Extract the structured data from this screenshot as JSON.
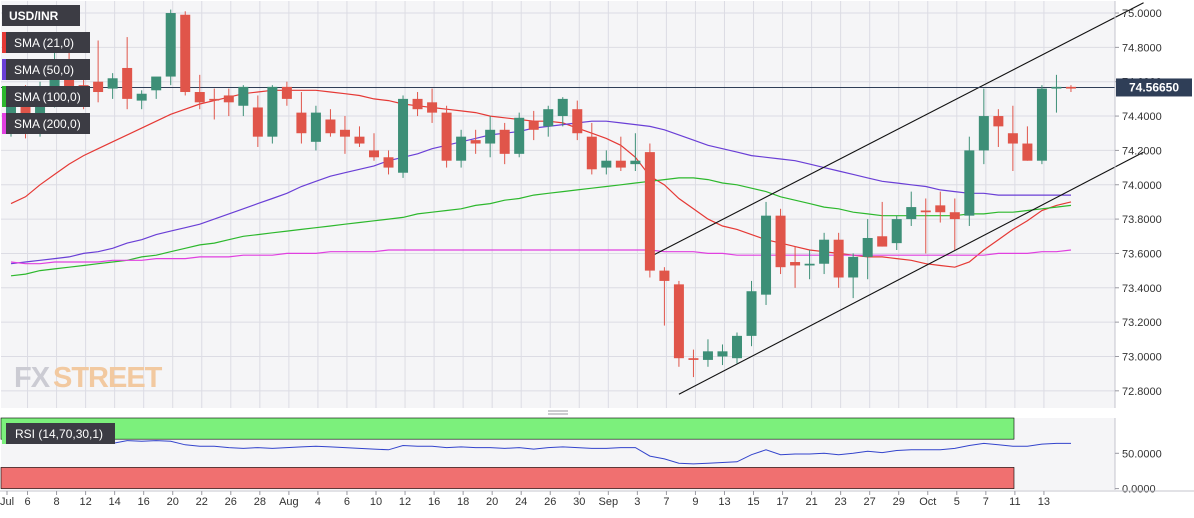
{
  "colors": {
    "background": "#f5f5f7",
    "grid": "#dcdce4",
    "bull": "#3d8f77",
    "bear": "#e0554a",
    "sma21": "#e53935",
    "sma50": "#6a3fd6",
    "sma100": "#2db82d",
    "sma200": "#e040e0",
    "channel": "#111111",
    "rsi_line": "#3344cc",
    "rsi_overbought_zone": "#7cf07c",
    "rsi_oversold_zone": "#f07070",
    "price_label_bg": "#2f3e57"
  },
  "header": {
    "symbol": "USD/INR"
  },
  "legend": [
    {
      "label": "SMA (21,0)",
      "color_key": "sma21"
    },
    {
      "label": "SMA (50,0)",
      "color_key": "sma50"
    },
    {
      "label": "SMA (100,0)",
      "color_key": "sma100"
    },
    {
      "label": "SMA (200,0)",
      "color_key": "sma200"
    }
  ],
  "watermark": {
    "part1": "FX",
    "part2": "STREET"
  },
  "price_label": "74.56650",
  "chart_data": {
    "type": "candlestick",
    "title": "USD/INR",
    "ylim": [
      72.7,
      75.07
    ],
    "y_ticks": [
      "75.0000",
      "74.8000",
      "74.6000",
      "74.4000",
      "74.2000",
      "74.0000",
      "73.8000",
      "73.6000",
      "73.4000",
      "73.2000",
      "73.0000",
      "72.8000"
    ],
    "x_ticks": [
      "Jul",
      "6",
      "8",
      "12",
      "14",
      "16",
      "20",
      "22",
      "26",
      "28",
      "Aug",
      "4",
      "6",
      "10",
      "12",
      "16",
      "18",
      "20",
      "24",
      "26",
      "30",
      "Sep",
      "3",
      "7",
      "9",
      "13",
      "15",
      "17",
      "21",
      "23",
      "27",
      "29",
      "Oct",
      "5",
      "7",
      "11",
      "13"
    ],
    "last_price": 74.5665,
    "candles": [
      {
        "o": 74.4,
        "h": 74.52,
        "l": 74.28,
        "c": 74.48
      },
      {
        "o": 74.5,
        "h": 74.58,
        "l": 74.27,
        "c": 74.32
      },
      {
        "o": 74.36,
        "h": 74.6,
        "l": 74.28,
        "c": 74.55
      },
      {
        "o": 74.56,
        "h": 74.78,
        "l": 74.45,
        "c": 74.62
      },
      {
        "o": 74.65,
        "h": 74.78,
        "l": 74.5,
        "c": 74.52
      },
      {
        "o": 74.58,
        "h": 74.64,
        "l": 74.44,
        "c": 74.56
      },
      {
        "o": 74.6,
        "h": 74.84,
        "l": 74.48,
        "c": 74.54
      },
      {
        "o": 74.56,
        "h": 74.65,
        "l": 74.5,
        "c": 74.62
      },
      {
        "o": 74.68,
        "h": 74.86,
        "l": 74.44,
        "c": 74.5
      },
      {
        "o": 74.49,
        "h": 74.55,
        "l": 74.44,
        "c": 74.53
      },
      {
        "o": 74.55,
        "h": 74.62,
        "l": 74.5,
        "c": 74.63
      },
      {
        "o": 74.63,
        "h": 75.02,
        "l": 74.58,
        "c": 75.0
      },
      {
        "o": 74.99,
        "h": 75.01,
        "l": 74.52,
        "c": 74.54
      },
      {
        "o": 74.54,
        "h": 74.64,
        "l": 74.44,
        "c": 74.48
      },
      {
        "o": 74.5,
        "h": 74.56,
        "l": 74.38,
        "c": 74.49
      },
      {
        "o": 74.52,
        "h": 74.56,
        "l": 74.4,
        "c": 74.48
      },
      {
        "o": 74.46,
        "h": 74.58,
        "l": 74.4,
        "c": 74.57
      },
      {
        "o": 74.45,
        "h": 74.52,
        "l": 74.22,
        "c": 74.28
      },
      {
        "o": 74.28,
        "h": 74.58,
        "l": 74.24,
        "c": 74.57
      },
      {
        "o": 74.57,
        "h": 74.6,
        "l": 74.46,
        "c": 74.5
      },
      {
        "o": 74.42,
        "h": 74.54,
        "l": 74.24,
        "c": 74.3
      },
      {
        "o": 74.25,
        "h": 74.46,
        "l": 74.2,
        "c": 74.42
      },
      {
        "o": 74.38,
        "h": 74.44,
        "l": 74.28,
        "c": 74.3
      },
      {
        "o": 74.32,
        "h": 74.4,
        "l": 74.18,
        "c": 74.28
      },
      {
        "o": 74.28,
        "h": 74.34,
        "l": 74.22,
        "c": 74.24
      },
      {
        "o": 74.2,
        "h": 74.3,
        "l": 74.14,
        "c": 74.16
      },
      {
        "o": 74.16,
        "h": 74.2,
        "l": 74.06,
        "c": 74.1
      },
      {
        "o": 74.07,
        "h": 74.52,
        "l": 74.04,
        "c": 74.5
      },
      {
        "o": 74.5,
        "h": 74.54,
        "l": 74.4,
        "c": 74.44
      },
      {
        "o": 74.48,
        "h": 74.56,
        "l": 74.36,
        "c": 74.42
      },
      {
        "o": 74.42,
        "h": 74.46,
        "l": 74.1,
        "c": 74.14
      },
      {
        "o": 74.14,
        "h": 74.32,
        "l": 74.1,
        "c": 74.28
      },
      {
        "o": 74.26,
        "h": 74.32,
        "l": 74.18,
        "c": 74.24
      },
      {
        "o": 74.24,
        "h": 74.4,
        "l": 74.16,
        "c": 74.32
      },
      {
        "o": 74.32,
        "h": 74.36,
        "l": 74.12,
        "c": 74.18
      },
      {
        "o": 74.18,
        "h": 74.42,
        "l": 74.16,
        "c": 74.39
      },
      {
        "o": 74.37,
        "h": 74.43,
        "l": 74.26,
        "c": 74.32
      },
      {
        "o": 74.34,
        "h": 74.46,
        "l": 74.28,
        "c": 74.44
      },
      {
        "o": 74.4,
        "h": 74.51,
        "l": 74.34,
        "c": 74.5
      },
      {
        "o": 74.44,
        "h": 74.49,
        "l": 74.26,
        "c": 74.3
      },
      {
        "o": 74.28,
        "h": 74.36,
        "l": 74.06,
        "c": 74.09
      },
      {
        "o": 74.1,
        "h": 74.2,
        "l": 74.06,
        "c": 74.14
      },
      {
        "o": 74.14,
        "h": 74.28,
        "l": 74.08,
        "c": 74.1
      },
      {
        "o": 74.12,
        "h": 74.3,
        "l": 74.08,
        "c": 74.14
      },
      {
        "o": 74.19,
        "h": 74.24,
        "l": 73.46,
        "c": 73.5
      },
      {
        "o": 73.5,
        "h": 73.52,
        "l": 73.18,
        "c": 73.44
      },
      {
        "o": 73.42,
        "h": 73.44,
        "l": 72.94,
        "c": 72.99
      },
      {
        "o": 72.99,
        "h": 73.04,
        "l": 72.88,
        "c": 72.98
      },
      {
        "o": 72.98,
        "h": 73.1,
        "l": 72.94,
        "c": 73.03
      },
      {
        "o": 73.0,
        "h": 73.07,
        "l": 72.95,
        "c": 73.03
      },
      {
        "o": 72.99,
        "h": 73.14,
        "l": 72.96,
        "c": 73.12
      },
      {
        "o": 73.12,
        "h": 73.44,
        "l": 73.06,
        "c": 73.38
      },
      {
        "o": 73.36,
        "h": 73.9,
        "l": 73.3,
        "c": 73.82
      },
      {
        "o": 73.82,
        "h": 73.86,
        "l": 73.48,
        "c": 73.52
      },
      {
        "o": 73.55,
        "h": 73.64,
        "l": 73.4,
        "c": 73.53
      },
      {
        "o": 73.53,
        "h": 73.62,
        "l": 73.45,
        "c": 73.54
      },
      {
        "o": 73.54,
        "h": 73.72,
        "l": 73.48,
        "c": 73.68
      },
      {
        "o": 73.68,
        "h": 73.72,
        "l": 73.4,
        "c": 73.46
      },
      {
        "o": 73.46,
        "h": 73.6,
        "l": 73.34,
        "c": 73.58
      },
      {
        "o": 73.58,
        "h": 73.8,
        "l": 73.45,
        "c": 73.69
      },
      {
        "o": 73.7,
        "h": 73.9,
        "l": 73.64,
        "c": 73.64
      },
      {
        "o": 73.66,
        "h": 73.82,
        "l": 73.62,
        "c": 73.8
      },
      {
        "o": 73.8,
        "h": 73.96,
        "l": 73.76,
        "c": 73.87
      },
      {
        "o": 73.85,
        "h": 73.92,
        "l": 73.6,
        "c": 73.84
      },
      {
        "o": 73.88,
        "h": 73.96,
        "l": 73.78,
        "c": 73.84
      },
      {
        "o": 73.84,
        "h": 73.92,
        "l": 73.62,
        "c": 73.8
      },
      {
        "o": 73.82,
        "h": 74.28,
        "l": 73.76,
        "c": 74.2
      },
      {
        "o": 74.2,
        "h": 74.56,
        "l": 74.12,
        "c": 74.4
      },
      {
        "o": 74.4,
        "h": 74.44,
        "l": 74.22,
        "c": 74.34
      },
      {
        "o": 74.3,
        "h": 74.46,
        "l": 74.08,
        "c": 74.24
      },
      {
        "o": 74.24,
        "h": 74.34,
        "l": 74.14,
        "c": 74.14
      },
      {
        "o": 74.14,
        "h": 74.58,
        "l": 74.12,
        "c": 74.56
      },
      {
        "o": 74.56,
        "h": 74.64,
        "l": 74.42,
        "c": 74.57
      },
      {
        "o": 74.57,
        "h": 74.58,
        "l": 74.54,
        "c": 74.56
      }
    ],
    "series": [
      {
        "name": "SMA (21,0)",
        "color": "#e53935",
        "values": [
          73.89,
          73.93,
          74.0,
          74.06,
          74.12,
          74.17,
          74.21,
          74.25,
          74.29,
          74.33,
          74.37,
          74.41,
          74.44,
          74.47,
          74.49,
          74.51,
          74.53,
          74.54,
          74.55,
          74.55,
          74.55,
          74.55,
          74.54,
          74.53,
          74.52,
          74.5,
          74.49,
          74.47,
          74.46,
          74.45,
          74.44,
          74.43,
          74.42,
          74.4,
          74.39,
          74.38,
          74.37,
          74.37,
          74.36,
          74.33,
          74.3,
          74.27,
          74.23,
          74.16,
          74.05,
          74.0,
          73.92,
          73.86,
          73.8,
          73.76,
          73.74,
          73.71,
          73.68,
          73.66,
          73.64,
          73.62,
          73.61,
          73.6,
          73.59,
          73.58,
          73.58,
          73.57,
          73.56,
          73.54,
          73.53,
          73.52,
          73.55,
          73.62,
          73.68,
          73.74,
          73.79,
          73.85,
          73.88,
          73.9
        ]
      },
      {
        "name": "SMA (50,0)",
        "color": "#6a3fd6",
        "values": [
          73.54,
          73.55,
          73.56,
          73.57,
          73.58,
          73.6,
          73.61,
          73.63,
          73.66,
          73.68,
          73.71,
          73.73,
          73.75,
          73.77,
          73.8,
          73.83,
          73.86,
          73.89,
          73.92,
          73.95,
          73.99,
          74.02,
          74.05,
          74.07,
          74.09,
          74.11,
          74.14,
          74.16,
          74.18,
          74.21,
          74.23,
          74.25,
          74.27,
          74.29,
          74.3,
          74.31,
          74.33,
          74.34,
          74.35,
          74.36,
          74.37,
          74.37,
          74.36,
          74.35,
          74.34,
          74.32,
          74.29,
          74.26,
          74.23,
          74.21,
          74.19,
          74.17,
          74.16,
          74.15,
          74.14,
          74.12,
          74.1,
          74.08,
          74.06,
          74.04,
          74.02,
          74.01,
          74.0,
          73.99,
          73.97,
          73.96,
          73.95,
          73.95,
          73.94,
          73.94,
          73.94,
          73.94,
          73.94,
          73.94
        ]
      },
      {
        "name": "SMA (100,0)",
        "color": "#2db82d",
        "values": [
          73.47,
          73.48,
          73.5,
          73.51,
          73.52,
          73.53,
          73.54,
          73.55,
          73.56,
          73.58,
          73.59,
          73.61,
          73.63,
          73.65,
          73.66,
          73.68,
          73.7,
          73.71,
          73.72,
          73.73,
          73.74,
          73.75,
          73.76,
          73.77,
          73.78,
          73.79,
          73.8,
          73.81,
          73.83,
          73.84,
          73.85,
          73.86,
          73.88,
          73.89,
          73.91,
          73.92,
          73.94,
          73.95,
          73.96,
          73.97,
          73.98,
          73.99,
          74.0,
          74.01,
          74.02,
          74.03,
          74.04,
          74.04,
          74.03,
          74.01,
          74.0,
          73.98,
          73.96,
          73.93,
          73.91,
          73.89,
          73.87,
          73.86,
          73.84,
          73.83,
          73.82,
          73.82,
          73.82,
          73.82,
          73.82,
          73.82,
          73.83,
          73.83,
          73.84,
          73.84,
          73.85,
          73.86,
          73.87,
          73.88
        ]
      },
      {
        "name": "SMA (200,0)",
        "color": "#e040e0",
        "values": [
          73.55,
          73.54,
          73.54,
          73.55,
          73.55,
          73.55,
          73.55,
          73.56,
          73.56,
          73.56,
          73.57,
          73.57,
          73.57,
          73.58,
          73.58,
          73.58,
          73.59,
          73.59,
          73.59,
          73.6,
          73.6,
          73.6,
          73.61,
          73.61,
          73.61,
          73.61,
          73.62,
          73.62,
          73.62,
          73.62,
          73.62,
          73.62,
          73.62,
          73.62,
          73.62,
          73.62,
          73.62,
          73.62,
          73.62,
          73.62,
          73.62,
          73.62,
          73.62,
          73.62,
          73.62,
          73.61,
          73.61,
          73.61,
          73.6,
          73.6,
          73.59,
          73.59,
          73.59,
          73.59,
          73.59,
          73.59,
          73.59,
          73.59,
          73.59,
          73.59,
          73.59,
          73.59,
          73.59,
          73.59,
          73.59,
          73.59,
          73.59,
          73.59,
          73.6,
          73.6,
          73.6,
          73.61,
          73.61,
          73.62
        ]
      }
    ],
    "channel": {
      "upper": {
        "from": [
          44,
          73.58
        ],
        "to": [
          78,
          75.06
        ]
      },
      "lower": {
        "from": [
          46,
          72.78
        ],
        "to": [
          78,
          74.19
        ]
      }
    },
    "rsi": {
      "label": "RSI (14,70,30,1)",
      "ylim": [
        -2,
        100
      ],
      "y_ticks": [
        "50.0000",
        "0.0000"
      ],
      "overbought": 70,
      "oversold": 30,
      "values": [
        72,
        70,
        68,
        69,
        69,
        70,
        66,
        64,
        68,
        67,
        68,
        67,
        62,
        60,
        60,
        58,
        57,
        58,
        57,
        58,
        59,
        60,
        59,
        58,
        57,
        56,
        55,
        61,
        60,
        60,
        58,
        59,
        58,
        58,
        57,
        58,
        56,
        58,
        59,
        58,
        57,
        57,
        58,
        58,
        46,
        42,
        36,
        35,
        36,
        37,
        38,
        48,
        55,
        48,
        49,
        49,
        50,
        48,
        50,
        53,
        51,
        54,
        55,
        55,
        55,
        57,
        61,
        64,
        62,
        60,
        60,
        63,
        64,
        64
      ]
    },
    "grid": true
  }
}
